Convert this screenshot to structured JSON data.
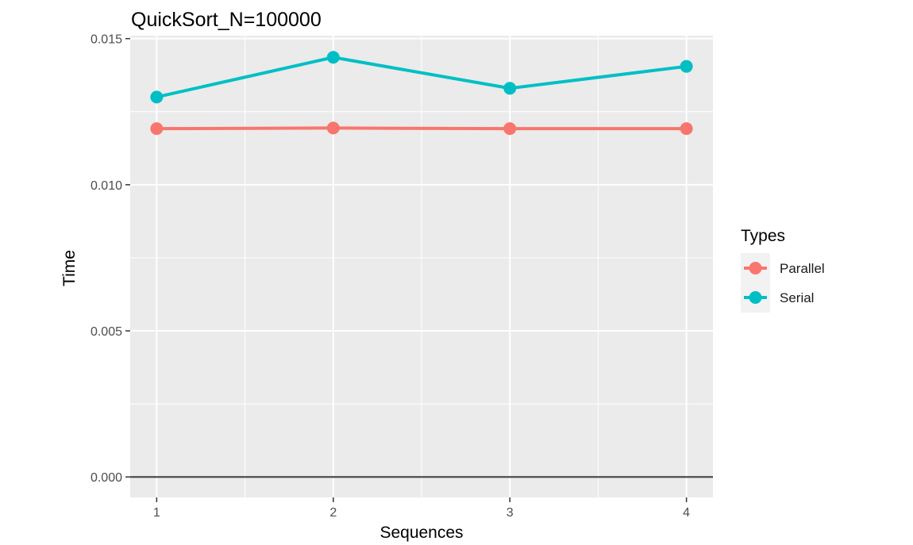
{
  "chart_data": {
    "type": "line",
    "title": "QuickSort_N=100000",
    "xlabel": "Sequences",
    "ylabel": "Time",
    "x": [
      1,
      2,
      3,
      4
    ],
    "x_tick_labels": [
      "1",
      "2",
      "3",
      "4"
    ],
    "y_tick_labels": [
      "0.000",
      "0.005",
      "0.010",
      "0.015"
    ],
    "y_ticks": [
      0,
      0.005,
      0.01,
      0.015
    ],
    "xlim": [
      0.85,
      4.15
    ],
    "ylim": [
      -0.0007,
      0.0151
    ],
    "grid": true,
    "hline": 0,
    "legend": {
      "title": "Types",
      "position": "right"
    },
    "series": [
      {
        "name": "Parallel",
        "color": "#F8766D",
        "values": [
          0.01192,
          0.01194,
          0.01192,
          0.01192
        ]
      },
      {
        "name": "Serial",
        "color": "#00BFC4",
        "values": [
          0.013,
          0.01436,
          0.0133,
          0.01405
        ]
      }
    ]
  }
}
